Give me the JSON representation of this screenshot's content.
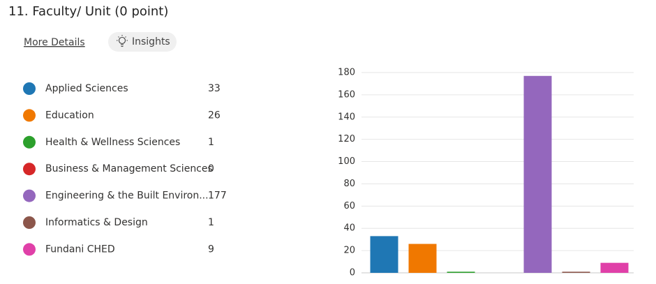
{
  "header": {
    "title": "11.  Faculty/ Unit (0 point)",
    "details_link": "More Details",
    "insights_button": "Insights"
  },
  "chart_data": {
    "type": "bar",
    "categories": [
      "Applied Sciences",
      "Education",
      "Health & Wellness Sciences",
      "Business & Management Sciences",
      "Engineering & the Built Environ...",
      "Informatics & Design",
      "Fundani CHED"
    ],
    "values": [
      33,
      26,
      1,
      0,
      177,
      1,
      9
    ],
    "colors": [
      "#1f77b4",
      "#f07800",
      "#2ca02c",
      "#d62728",
      "#9467bd",
      "#8c564b",
      "#e040a8"
    ],
    "ylim": [
      0,
      180
    ],
    "yticks": [
      0,
      20,
      40,
      60,
      80,
      100,
      120,
      140,
      160,
      180
    ],
    "grid": true
  }
}
